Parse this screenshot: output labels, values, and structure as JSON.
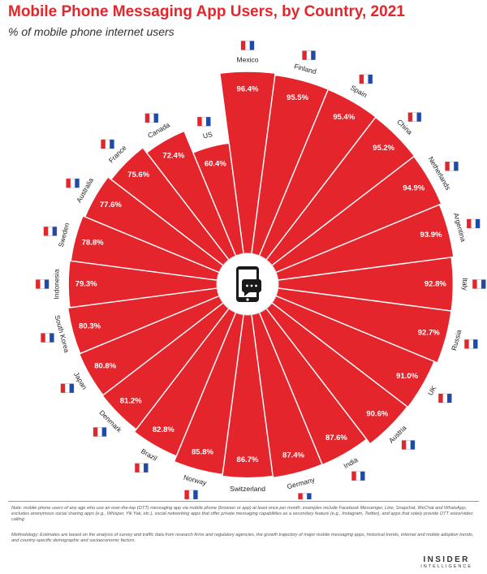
{
  "title": "Mobile Phone Messaging App Users, by Country, 2021",
  "subtitle": "% of mobile phone internet users",
  "note": "Note: mobile phone users of any age who use an over-the-top (OTT) messaging app via mobile phone (browser or app) at least once per month; examples include Facebook Messenger, Line, Snapchat, WeChat and WhatsApp; excludes anonymous social sharing apps (e.g., Whisper, Yik Yak, etc.), social networking apps that offer private messaging capabilities as a secondary feature (e.g., Instagram, Twitter), and apps that solely provide OTT voice/video calling",
  "methodology": "Methodology: Estimates are based on the analysis of survey and traffic data from research firms and regulatory agencies, the growth trajectory of major mobile messaging apps, historical trends, internet and mobile adoption trends, and country-specific demographic and socioeconomic factors.",
  "logo": {
    "main": "INSIDER",
    "sub": "INTELLIGENCE"
  },
  "center_icon": "smartphone-chat-icon",
  "colors": {
    "bar": "#e4262c",
    "title": "#e4262c",
    "label": "#ffffff",
    "center": "#ffffff"
  },
  "chart_data": {
    "type": "bar",
    "layout": "radial",
    "title": "Mobile Phone Messaging App Users, by Country, 2021",
    "subtitle": "% of mobile phone internet users",
    "unit": "%",
    "categories": [
      "Mexico",
      "Finland",
      "Spain",
      "China",
      "Netherlands",
      "Argentina",
      "Italy",
      "Russia",
      "UK",
      "Austria",
      "India",
      "Germany",
      "Switzerland",
      "Norway",
      "Brazil",
      "Denmark",
      "Japan",
      "South Korea",
      "Indonesia",
      "Sweden",
      "Australia",
      "France",
      "Canada",
      "US"
    ],
    "values": [
      96.4,
      95.5,
      95.4,
      95.2,
      94.9,
      93.9,
      92.8,
      92.7,
      91.0,
      90.6,
      87.6,
      87.4,
      86.7,
      85.8,
      82.8,
      81.2,
      80.8,
      80.3,
      79.3,
      78.8,
      77.6,
      75.6,
      72.4,
      60.4
    ],
    "value_labels": [
      "96.4%",
      "95.5%",
      "95.4%",
      "95.2%",
      "94.9%",
      "93.9%",
      "92.8%",
      "92.7%",
      "91.0%",
      "90.6%",
      "87.6%",
      "87.4%",
      "86.7%",
      "85.8%",
      "82.8%",
      "81.2%",
      "80.8%",
      "80.3%",
      "79.3%",
      "78.8%",
      "77.6%",
      "75.6%",
      "72.4%",
      "60.4%"
    ],
    "flags": [
      "mexico-flag-icon",
      "finland-flag-icon",
      "spain-flag-icon",
      "china-flag-icon",
      "netherlands-flag-icon",
      "argentina-flag-icon",
      "italy-flag-icon",
      "russia-flag-icon",
      "uk-flag-icon",
      "austria-flag-icon",
      "india-flag-icon",
      "germany-flag-icon",
      "switzerland-flag-icon",
      "norway-flag-icon",
      "brazil-flag-icon",
      "denmark-flag-icon",
      "japan-flag-icon",
      "south-korea-flag-icon",
      "indonesia-flag-icon",
      "sweden-flag-icon",
      "australia-flag-icon",
      "france-flag-icon",
      "canada-flag-icon",
      "us-flag-icon"
    ]
  }
}
